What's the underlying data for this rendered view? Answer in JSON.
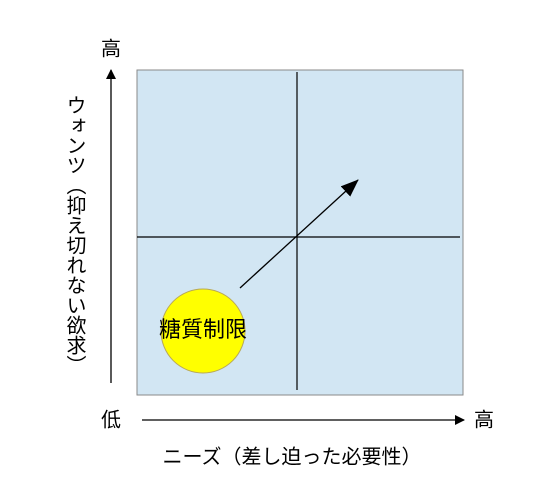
{
  "y_axis": {
    "high_label": "高",
    "low_label": "低",
    "title": "ウォンツ（抑え切れない欲求）"
  },
  "x_axis": {
    "high_label": "高",
    "title": "ニーズ（差し迫った必要性）"
  },
  "items": [
    {
      "label": "糖質制限"
    }
  ]
}
